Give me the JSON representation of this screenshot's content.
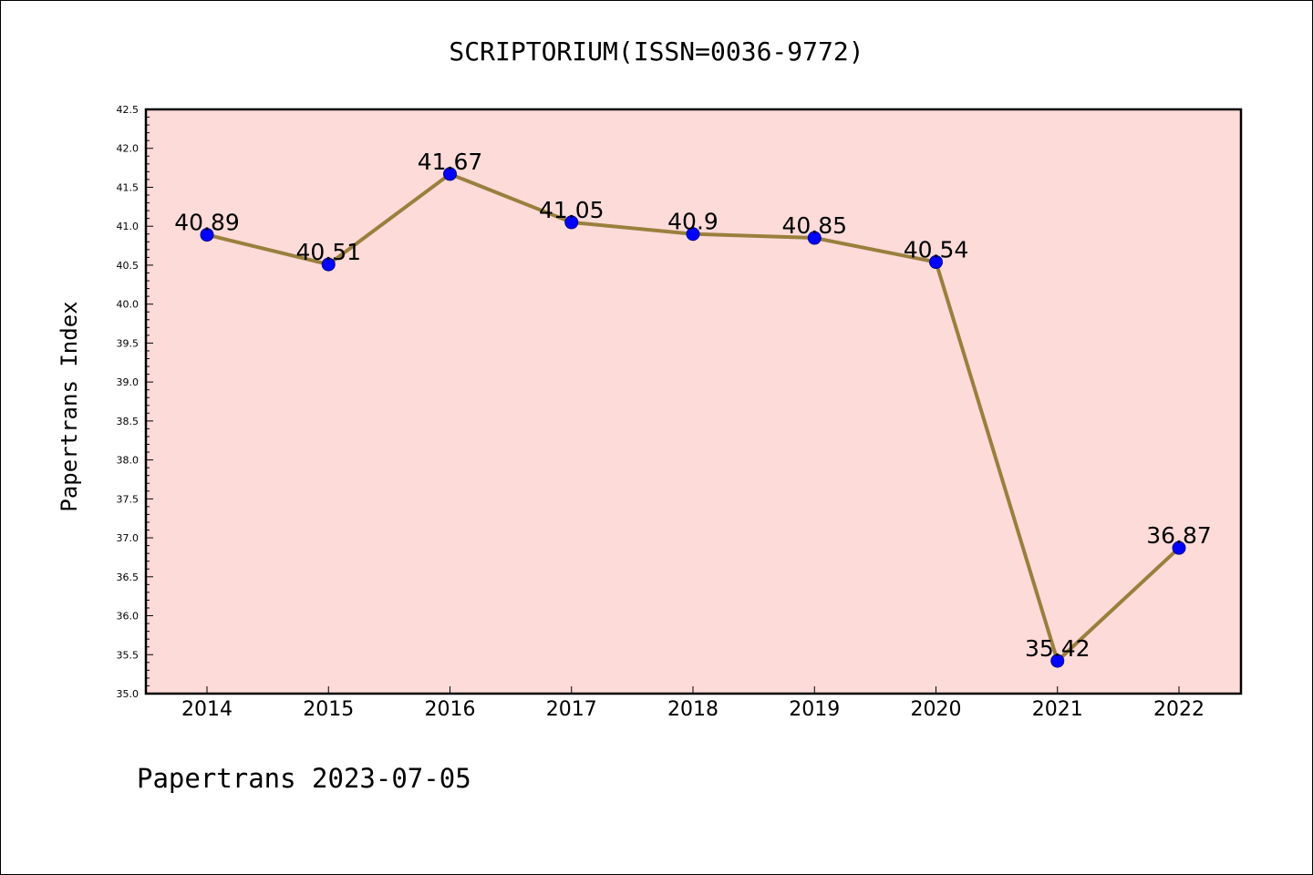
{
  "chart_data": {
    "type": "line",
    "title": "SCRIPTORIUM(ISSN=0036-9772)",
    "xlabel": "",
    "ylabel": "Papertrans Index",
    "categories": [
      "2014",
      "2015",
      "2016",
      "2017",
      "2018",
      "2019",
      "2020",
      "2021",
      "2022"
    ],
    "series": [
      {
        "name": "Papertrans Index",
        "values": [
          40.89,
          40.51,
          41.67,
          41.05,
          40.9,
          40.85,
          40.54,
          35.42,
          36.87
        ]
      }
    ],
    "data_labels": [
      "40.89",
      "40.51",
      "41.67",
      "41.05",
      "40.9",
      "40.85",
      "40.54",
      "35.42",
      "36.87"
    ],
    "ylim": [
      35.0,
      42.5
    ],
    "yticks": [
      "35.0",
      "35.5",
      "36.0",
      "36.5",
      "37.0",
      "37.5",
      "38.0",
      "38.5",
      "39.0",
      "39.5",
      "40.0",
      "40.5",
      "41.0",
      "41.5",
      "42.0",
      "42.5"
    ],
    "grid": false,
    "footer": "Papertrans 2023-07-05",
    "colors": {
      "plot_background": "#fddbd9",
      "line": "#9a7f3d",
      "marker": "#0000ff"
    }
  }
}
